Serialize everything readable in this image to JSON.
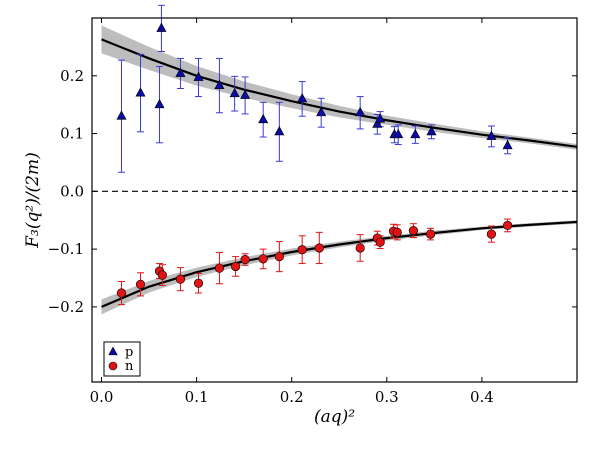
{
  "chart_data": {
    "type": "scatter",
    "xlabel": "(aq)²",
    "ylabel": "F₃(q²)/(2m)",
    "xlim": [
      -0.01,
      0.5
    ],
    "ylim": [
      -0.33,
      0.3
    ],
    "xticks": [
      0.0,
      0.1,
      0.2,
      0.3,
      0.4
    ],
    "xtick_labels": [
      "0.0",
      "0.1",
      "0.2",
      "0.3",
      "0.4"
    ],
    "yticks": [
      -0.2,
      -0.1,
      0.0,
      0.1,
      0.2
    ],
    "ytick_labels": [
      "−0.2",
      "−0.1",
      "0.0",
      "0.1",
      "0.2"
    ],
    "reference_line": {
      "y": 0.0,
      "style": "dashed"
    },
    "legend": {
      "placement": "lower-left",
      "entries": [
        "p",
        "n"
      ]
    },
    "series": [
      {
        "name": "p",
        "marker": "triangle",
        "color": "#0b0ba6",
        "errcolor": "#3a3ad6",
        "points": [
          {
            "x": 0.021,
            "y": 0.13,
            "err": 0.097
          },
          {
            "x": 0.041,
            "y": 0.17,
            "err": 0.067
          },
          {
            "x": 0.061,
            "y": 0.15,
            "err": 0.066
          },
          {
            "x": 0.063,
            "y": 0.282,
            "err": 0.04
          },
          {
            "x": 0.083,
            "y": 0.204,
            "err": 0.026
          },
          {
            "x": 0.102,
            "y": 0.197,
            "err": 0.033
          },
          {
            "x": 0.124,
            "y": 0.183,
            "err": 0.047
          },
          {
            "x": 0.14,
            "y": 0.169,
            "err": 0.03
          },
          {
            "x": 0.151,
            "y": 0.166,
            "err": 0.032
          },
          {
            "x": 0.17,
            "y": 0.124,
            "err": 0.03
          },
          {
            "x": 0.187,
            "y": 0.103,
            "err": 0.051
          },
          {
            "x": 0.211,
            "y": 0.16,
            "err": 0.03
          },
          {
            "x": 0.231,
            "y": 0.136,
            "err": 0.025
          },
          {
            "x": 0.272,
            "y": 0.136,
            "err": 0.028
          },
          {
            "x": 0.29,
            "y": 0.116,
            "err": 0.017
          },
          {
            "x": 0.293,
            "y": 0.125,
            "err": 0.013
          },
          {
            "x": 0.308,
            "y": 0.098,
            "err": 0.014
          },
          {
            "x": 0.312,
            "y": 0.098,
            "err": 0.017
          },
          {
            "x": 0.33,
            "y": 0.098,
            "err": 0.015
          },
          {
            "x": 0.347,
            "y": 0.103,
            "err": 0.012
          },
          {
            "x": 0.41,
            "y": 0.095,
            "err": 0.018
          },
          {
            "x": 0.427,
            "y": 0.079,
            "err": 0.014
          }
        ]
      },
      {
        "name": "n",
        "marker": "circle",
        "color": "#e01414",
        "errcolor": "#e01414",
        "points": [
          {
            "x": 0.021,
            "y": -0.176,
            "err": 0.02
          },
          {
            "x": 0.041,
            "y": -0.161,
            "err": 0.02
          },
          {
            "x": 0.061,
            "y": -0.138,
            "err": 0.013
          },
          {
            "x": 0.064,
            "y": -0.145,
            "err": 0.018
          },
          {
            "x": 0.083,
            "y": -0.152,
            "err": 0.02
          },
          {
            "x": 0.102,
            "y": -0.159,
            "err": 0.017
          },
          {
            "x": 0.124,
            "y": -0.133,
            "err": 0.027
          },
          {
            "x": 0.141,
            "y": -0.13,
            "err": 0.017
          },
          {
            "x": 0.151,
            "y": -0.118,
            "err": 0.01
          },
          {
            "x": 0.17,
            "y": -0.117,
            "err": 0.017
          },
          {
            "x": 0.187,
            "y": -0.113,
            "err": 0.026
          },
          {
            "x": 0.211,
            "y": -0.101,
            "err": 0.024
          },
          {
            "x": 0.229,
            "y": -0.098,
            "err": 0.027
          },
          {
            "x": 0.272,
            "y": -0.098,
            "err": 0.023
          },
          {
            "x": 0.29,
            "y": -0.081,
            "err": 0.012
          },
          {
            "x": 0.293,
            "y": -0.088,
            "err": 0.011
          },
          {
            "x": 0.307,
            "y": -0.069,
            "err": 0.012
          },
          {
            "x": 0.311,
            "y": -0.071,
            "err": 0.013
          },
          {
            "x": 0.328,
            "y": -0.068,
            "err": 0.012
          },
          {
            "x": 0.346,
            "y": -0.074,
            "err": 0.01
          },
          {
            "x": 0.41,
            "y": -0.074,
            "err": 0.014
          },
          {
            "x": 0.427,
            "y": -0.059,
            "err": 0.011
          }
        ]
      }
    ],
    "fits": [
      {
        "name": "p fit",
        "x": [
          0.0,
          0.05,
          0.1,
          0.15,
          0.2,
          0.25,
          0.3,
          0.35,
          0.4,
          0.45,
          0.5
        ],
        "y": [
          0.263,
          0.23,
          0.2,
          0.176,
          0.156,
          0.138,
          0.123,
          0.11,
          0.098,
          0.088,
          0.077
        ],
        "band": [
          0.024,
          0.02,
          0.017,
          0.014,
          0.012,
          0.01,
          0.008,
          0.007,
          0.006,
          0.005,
          0.005
        ]
      },
      {
        "name": "n fit",
        "x": [
          0.0,
          0.05,
          0.1,
          0.15,
          0.2,
          0.25,
          0.3,
          0.35,
          0.4,
          0.45,
          0.5
        ],
        "y": [
          -0.2,
          -0.165,
          -0.14,
          -0.121,
          -0.105,
          -0.092,
          -0.081,
          -0.072,
          -0.064,
          -0.058,
          -0.053
        ],
        "band": [
          0.013,
          0.01,
          0.008,
          0.007,
          0.006,
          0.005,
          0.004,
          0.004,
          0.003,
          0.003,
          0.003
        ]
      }
    ]
  }
}
